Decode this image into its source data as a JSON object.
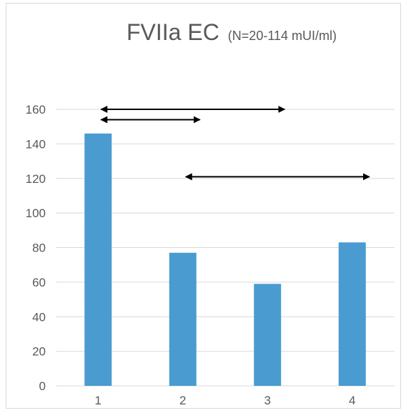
{
  "chart_data": {
    "type": "bar",
    "title": "FVIIa EC",
    "subtitle": "(N=20-114 mUI/ml)",
    "xlabel": "",
    "ylabel": "",
    "categories": [
      "1",
      "2",
      "3",
      "4"
    ],
    "values": [
      146,
      77,
      59,
      83
    ],
    "ylim": [
      0,
      160
    ],
    "yticks": [
      0,
      20,
      40,
      60,
      80,
      100,
      120,
      140,
      160
    ],
    "grid": true,
    "legend": "none",
    "bar_color": "#4a9bd0",
    "annotations": [
      {
        "type": "double-arrow",
        "from_category": "1",
        "to_category": "3",
        "y": 160
      },
      {
        "type": "double-arrow",
        "from_category": "1",
        "to_category": "2",
        "y": 154
      },
      {
        "type": "double-arrow",
        "from_category": "2",
        "to_category": "4",
        "y": 121
      }
    ]
  }
}
